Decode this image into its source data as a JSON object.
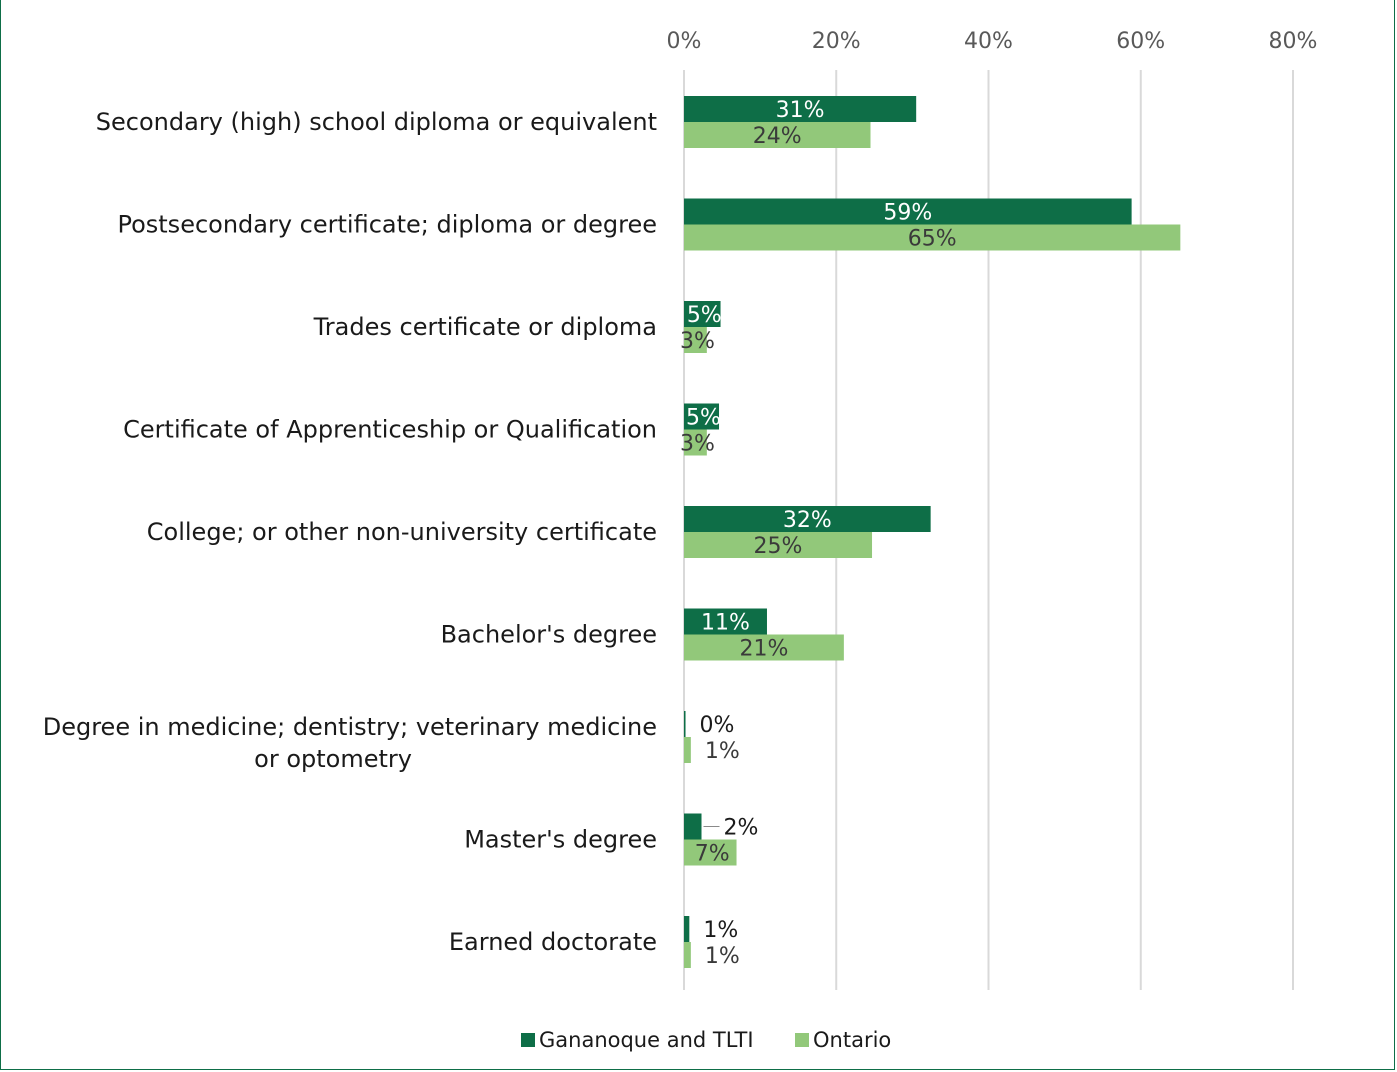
{
  "chart_data": {
    "type": "bar",
    "orientation": "horizontal",
    "categories": [
      "Secondary (high) school diploma or equivalent",
      "Postsecondary certificate; diploma or degree",
      "Trades certificate or diploma",
      "Certificate of Apprenticeship or  Qualification",
      "College; or other non-university certificate",
      "Bachelor's degree",
      "Degree in medicine; dentistry; veterinary medicine or optometry",
      "Master's degree",
      "Earned doctorate"
    ],
    "category_lines": [
      [
        "Secondary (high) school diploma or equivalent"
      ],
      [
        "Postsecondary certificate; diploma or degree"
      ],
      [
        "Trades certificate or diploma"
      ],
      [
        "Certificate of Apprenticeship or  Qualification"
      ],
      [
        "College; or other non-university certificate"
      ],
      [
        "Bachelor's degree"
      ],
      [
        "Degree in medicine; dentistry; veterinary medicine",
        "or optometry"
      ],
      [
        "Master's degree"
      ],
      [
        "Earned doctorate"
      ]
    ],
    "series": [
      {
        "name": "Gananoque and TLTI",
        "color": "#0e6e47",
        "values": [
          30.5,
          58.8,
          4.8,
          4.6,
          32.4,
          10.9,
          0.2,
          2.3,
          0.7
        ],
        "labels": [
          "31%",
          "59%",
          "5%",
          "5%",
          "32%",
          "11%",
          "0%",
          "2%",
          "1%"
        ]
      },
      {
        "name": "Ontario",
        "color": "#92c87a",
        "values": [
          24.5,
          65.2,
          3.0,
          3.0,
          24.7,
          21.0,
          0.9,
          6.9,
          0.9
        ],
        "labels": [
          "24%",
          "65%",
          "3%",
          "3%",
          "25%",
          "21%",
          "1%",
          "7%",
          "1%"
        ]
      }
    ],
    "xlim": [
      0,
      80
    ],
    "ticks": [
      0,
      20,
      40,
      60,
      80
    ],
    "tick_labels": [
      "0%",
      "20%",
      "40%",
      "60%",
      "80%"
    ],
    "grid": true,
    "legend": "bottom-center"
  }
}
